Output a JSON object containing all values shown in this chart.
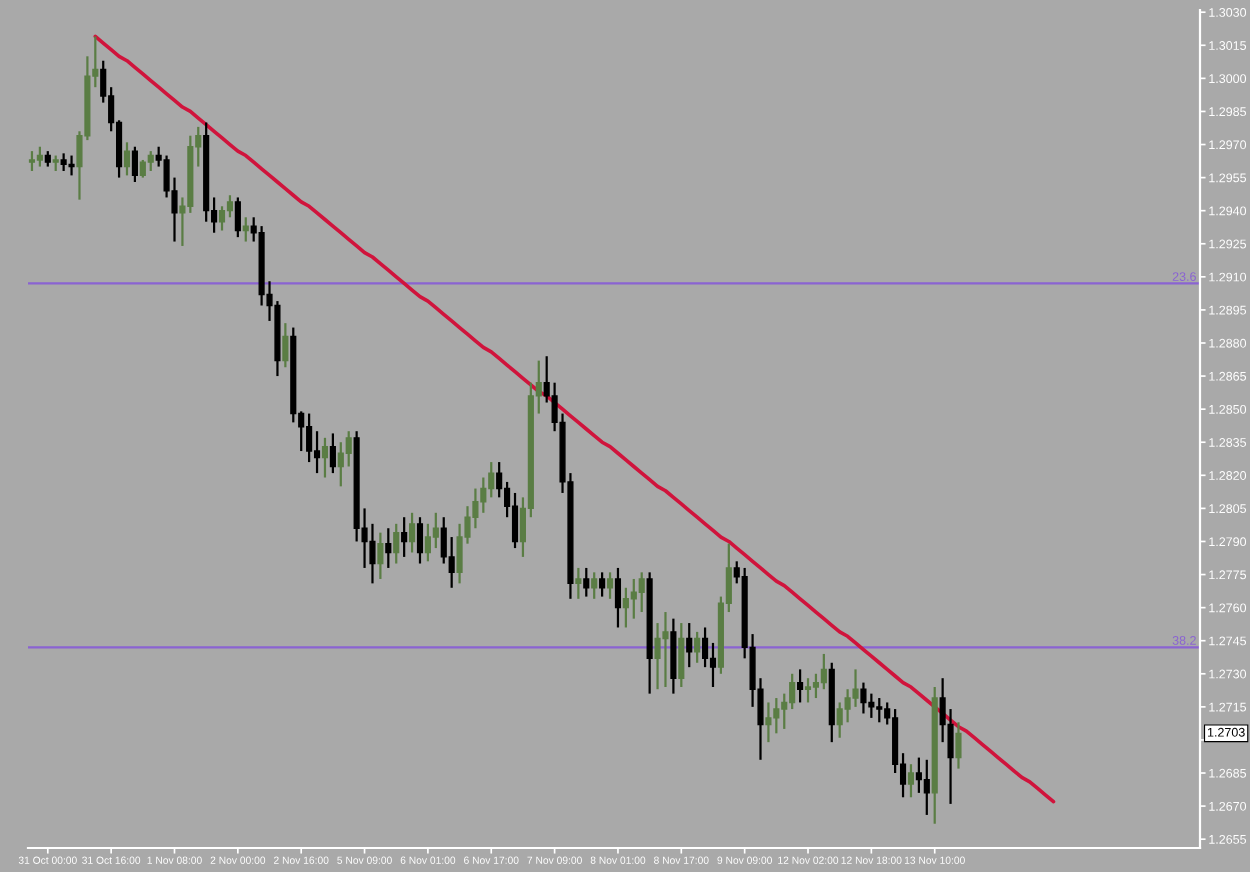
{
  "chart_data": {
    "type": "candlestick",
    "categories": [
      null,
      null,
      "31 Oct 00:00",
      null,
      null,
      null,
      null,
      null,
      null,
      null,
      "31 Oct 16:00",
      null,
      null,
      null,
      null,
      null,
      null,
      null,
      "1 Nov 08:00",
      null,
      null,
      null,
      null,
      null,
      null,
      null,
      "2 Nov 00:00",
      null,
      null,
      null,
      null,
      null,
      null,
      null,
      "2 Nov 16:00",
      null,
      null,
      null,
      null,
      null,
      null,
      null,
      "5 Nov 09:00",
      null,
      null,
      null,
      null,
      null,
      null,
      null,
      "6 Nov 01:00",
      null,
      null,
      null,
      null,
      null,
      null,
      null,
      "6 Nov 17:00",
      null,
      null,
      null,
      null,
      null,
      null,
      null,
      "7 Nov 09:00",
      null,
      null,
      null,
      null,
      null,
      null,
      null,
      "8 Nov 01:00",
      null,
      null,
      null,
      null,
      null,
      null,
      null,
      "8 Nov 17:00",
      null,
      null,
      null,
      null,
      null,
      null,
      null,
      "9 Nov 09:00",
      null,
      null,
      null,
      null,
      null,
      null,
      null,
      "12 Nov 02:00",
      null,
      null,
      null,
      null,
      null,
      null,
      null,
      "12 Nov 18:00",
      null,
      null,
      null,
      null,
      null,
      null,
      null,
      "13 Nov 10:00",
      null,
      null,
      null,
      null,
      null,
      null,
      null,
      null,
      null,
      null,
      null,
      null,
      null,
      null,
      null,
      null,
      null,
      null,
      null,
      null,
      null,
      null,
      null,
      null,
      null,
      null,
      null,
      null,
      null,
      null,
      null,
      null,
      null
    ],
    "ohlc": [
      [
        1.2962,
        1.2967,
        1.2958,
        1.2963
      ],
      [
        1.2963,
        1.2969,
        1.296,
        1.2965
      ],
      [
        1.2965,
        1.2967,
        1.296,
        1.2962
      ],
      [
        1.2962,
        1.2965,
        1.2958,
        1.2963
      ],
      [
        1.2963,
        1.2966,
        1.2958,
        1.2961
      ],
      [
        1.2961,
        1.2965,
        1.2956,
        1.296
      ],
      [
        1.296,
        1.2976,
        1.2945,
        1.2974
      ],
      [
        1.2974,
        1.301,
        1.2972,
        1.3001
      ],
      [
        1.3001,
        1.3019,
        1.2996,
        1.3004
      ],
      [
        1.3004,
        1.3008,
        1.2989,
        1.2992
      ],
      [
        1.2992,
        1.2996,
        1.2976,
        1.298
      ],
      [
        1.298,
        1.2981,
        1.2955,
        1.296
      ],
      [
        1.296,
        1.2971,
        1.2956,
        1.2967
      ],
      [
        1.2967,
        1.2969,
        1.2953,
        1.2956
      ],
      [
        1.2956,
        1.2963,
        1.2955,
        1.2962
      ],
      [
        1.2962,
        1.2967,
        1.2958,
        1.2965
      ],
      [
        1.2965,
        1.2969,
        1.296,
        1.2963
      ],
      [
        1.2963,
        1.2965,
        1.2946,
        1.2949
      ],
      [
        1.2949,
        1.2955,
        1.2926,
        1.2939
      ],
      [
        1.2939,
        1.2946,
        1.2924,
        1.2942
      ],
      [
        1.2942,
        1.2974,
        1.2939,
        1.2969
      ],
      [
        1.2969,
        1.2978,
        1.296,
        1.2974
      ],
      [
        1.2974,
        1.298,
        1.2935,
        1.294
      ],
      [
        1.294,
        1.2946,
        1.293,
        1.2935
      ],
      [
        1.2935,
        1.2942,
        1.2931,
        1.294
      ],
      [
        1.294,
        1.2947,
        1.2937,
        1.2944
      ],
      [
        1.2944,
        1.2946,
        1.2928,
        1.2931
      ],
      [
        1.2931,
        1.2937,
        1.2926,
        1.2933
      ],
      [
        1.2933,
        1.2937,
        1.2926,
        1.293
      ],
      [
        1.293,
        1.2933,
        1.2897,
        1.2902
      ],
      [
        1.2902,
        1.2908,
        1.289,
        1.2897
      ],
      [
        1.2897,
        1.2899,
        1.2865,
        1.2872
      ],
      [
        1.2872,
        1.2889,
        1.2869,
        1.2883
      ],
      [
        1.2883,
        1.2887,
        1.2844,
        1.2848
      ],
      [
        1.2848,
        1.2849,
        1.2831,
        1.2842
      ],
      [
        1.2842,
        1.2848,
        1.2826,
        1.2831
      ],
      [
        1.2831,
        1.284,
        1.2821,
        1.2828
      ],
      [
        1.2828,
        1.2837,
        1.2819,
        1.2833
      ],
      [
        1.2833,
        1.2839,
        1.2821,
        1.2824
      ],
      [
        1.2824,
        1.2835,
        1.2815,
        1.283
      ],
      [
        1.283,
        1.284,
        1.2824,
        1.2837
      ],
      [
        1.2837,
        1.284,
        1.279,
        1.2796
      ],
      [
        1.2796,
        1.2805,
        1.2778,
        1.279
      ],
      [
        1.279,
        1.2798,
        1.2771,
        1.278
      ],
      [
        1.278,
        1.2794,
        1.2773,
        1.2789
      ],
      [
        1.2789,
        1.2796,
        1.2778,
        1.2785
      ],
      [
        1.2785,
        1.2798,
        1.278,
        1.2794
      ],
      [
        1.2794,
        1.2801,
        1.2783,
        1.279
      ],
      [
        1.279,
        1.2803,
        1.2785,
        1.2798
      ],
      [
        1.2798,
        1.2801,
        1.278,
        1.2785
      ],
      [
        1.2785,
        1.2798,
        1.2781,
        1.2792
      ],
      [
        1.2792,
        1.2803,
        1.2787,
        1.2796
      ],
      [
        1.2796,
        1.2801,
        1.278,
        1.2783
      ],
      [
        1.2783,
        1.2792,
        1.2769,
        1.2776
      ],
      [
        1.2776,
        1.2798,
        1.2771,
        1.2792
      ],
      [
        1.2792,
        1.2806,
        1.2789,
        1.2801
      ],
      [
        1.2801,
        1.2814,
        1.2796,
        1.2808
      ],
      [
        1.2808,
        1.2819,
        1.2803,
        1.2814
      ],
      [
        1.2814,
        1.2826,
        1.281,
        1.2821
      ],
      [
        1.2821,
        1.2826,
        1.281,
        1.2814
      ],
      [
        1.2814,
        1.2817,
        1.2801,
        1.2806
      ],
      [
        1.2806,
        1.2812,
        1.2787,
        1.279
      ],
      [
        1.279,
        1.281,
        1.2783,
        1.2805
      ],
      [
        1.2805,
        1.2862,
        1.2801,
        1.2856
      ],
      [
        1.2856,
        1.2872,
        1.2848,
        1.2862
      ],
      [
        1.2862,
        1.2874,
        1.2853,
        1.2856
      ],
      [
        1.2856,
        1.2862,
        1.284,
        1.2844
      ],
      [
        1.2844,
        1.2848,
        1.2812,
        1.2817
      ],
      [
        1.2817,
        1.2821,
        1.2764,
        1.2771
      ],
      [
        1.2771,
        1.2778,
        1.2764,
        1.2773
      ],
      [
        1.2773,
        1.2778,
        1.2765,
        1.2769
      ],
      [
        1.2769,
        1.2776,
        1.2764,
        1.2773
      ],
      [
        1.2773,
        1.2776,
        1.2765,
        1.2769
      ],
      [
        1.2769,
        1.2776,
        1.2764,
        1.2773
      ],
      [
        1.2773,
        1.2778,
        1.2751,
        1.276
      ],
      [
        1.276,
        1.2769,
        1.2751,
        1.2764
      ],
      [
        1.2764,
        1.2773,
        1.2755,
        1.2767
      ],
      [
        1.2767,
        1.2776,
        1.2758,
        1.2773
      ],
      [
        1.2773,
        1.2776,
        1.2721,
        1.2737
      ],
      [
        1.2737,
        1.2753,
        1.2723,
        1.2746
      ],
      [
        1.2746,
        1.2758,
        1.2724,
        1.2749
      ],
      [
        1.2749,
        1.2755,
        1.2721,
        1.2728
      ],
      [
        1.2728,
        1.2753,
        1.2724,
        1.2746
      ],
      [
        1.2746,
        1.2753,
        1.2733,
        1.274
      ],
      [
        1.274,
        1.2749,
        1.2735,
        1.2746
      ],
      [
        1.2746,
        1.2751,
        1.2733,
        1.2737
      ],
      [
        1.2737,
        1.2744,
        1.2724,
        1.2733
      ],
      [
        1.2733,
        1.2765,
        1.273,
        1.2762
      ],
      [
        1.2762,
        1.2789,
        1.2758,
        1.2778
      ],
      [
        1.2778,
        1.2781,
        1.2771,
        1.2774
      ],
      [
        1.2774,
        1.2778,
        1.2737,
        1.2742
      ],
      [
        1.2742,
        1.2748,
        1.2715,
        1.2723
      ],
      [
        1.2723,
        1.2728,
        1.2691,
        1.2707
      ],
      [
        1.2707,
        1.2717,
        1.2699,
        1.271
      ],
      [
        1.271,
        1.2719,
        1.2703,
        1.2714
      ],
      [
        1.2714,
        1.2721,
        1.2705,
        1.2717
      ],
      [
        1.2717,
        1.273,
        1.2714,
        1.2726
      ],
      [
        1.2726,
        1.2732,
        1.2717,
        1.2723
      ],
      [
        1.2723,
        1.2728,
        1.2717,
        1.2724
      ],
      [
        1.2724,
        1.273,
        1.2719,
        1.2726
      ],
      [
        1.2726,
        1.2739,
        1.2723,
        1.2732
      ],
      [
        1.2732,
        1.2735,
        1.2699,
        1.2707
      ],
      [
        1.2707,
        1.2717,
        1.2701,
        1.2714
      ],
      [
        1.2714,
        1.2723,
        1.2708,
        1.2719
      ],
      [
        1.2719,
        1.2732,
        1.2715,
        1.2723
      ],
      [
        1.2723,
        1.2726,
        1.2712,
        1.2717
      ],
      [
        1.2717,
        1.2721,
        1.271,
        1.2715
      ],
      [
        1.2715,
        1.2719,
        1.2708,
        1.2714
      ],
      [
        1.2714,
        1.2717,
        1.2707,
        1.271
      ],
      [
        1.271,
        1.2714,
        1.2685,
        1.2689
      ],
      [
        1.2689,
        1.2694,
        1.2674,
        1.268
      ],
      [
        1.268,
        1.2689,
        1.2674,
        1.2685
      ],
      [
        1.2685,
        1.2692,
        1.2676,
        1.2682
      ],
      [
        1.2682,
        1.2691,
        1.2666,
        1.2676
      ],
      [
        1.2676,
        1.2724,
        1.2662,
        1.2719
      ],
      [
        1.2719,
        1.2728,
        1.2699,
        1.2707
      ],
      [
        1.2707,
        1.2714,
        1.2671,
        1.2692
      ],
      [
        1.2692,
        1.2708,
        1.2687,
        1.2703
      ],
      null,
      null,
      null,
      null,
      null,
      null,
      null,
      null,
      null,
      null,
      null,
      null,
      null,
      null,
      null,
      null,
      null,
      null,
      null,
      null,
      null,
      null,
      null,
      null,
      null,
      null,
      null,
      null,
      null,
      null
    ],
    "colors": [
      "#5a7d44",
      "#5a7d44",
      "#000000",
      "#5a7d44",
      "#000000",
      "#000000",
      "#5a7d44",
      "#5a7d44",
      "#5a7d44",
      "#000000",
      "#000000",
      "#000000",
      "#5a7d44",
      "#000000",
      "#5a7d44",
      "#5a7d44",
      "#000000",
      "#000000",
      "#000000",
      "#5a7d44",
      "#5a7d44",
      "#5a7d44",
      "#000000",
      "#000000",
      "#5a7d44",
      "#5a7d44",
      "#000000",
      "#5a7d44",
      "#000000",
      "#000000",
      "#000000",
      "#000000",
      "#5a7d44",
      "#000000",
      "#000000",
      "#000000",
      "#000000",
      "#5a7d44",
      "#000000",
      "#5a7d44",
      "#5a7d44",
      "#000000",
      "#000000",
      "#000000",
      "#5a7d44",
      "#000000",
      "#5a7d44",
      "#000000",
      "#5a7d44",
      "#000000",
      "#5a7d44",
      "#5a7d44",
      "#000000",
      "#000000",
      "#5a7d44",
      "#5a7d44",
      "#5a7d44",
      "#5a7d44",
      "#5a7d44",
      "#000000",
      "#000000",
      "#000000",
      "#5a7d44",
      "#5a7d44",
      "#5a7d44",
      "#000000",
      "#000000",
      "#000000",
      "#000000",
      "#5a7d44",
      "#000000",
      "#5a7d44",
      "#000000",
      "#5a7d44",
      "#000000",
      "#5a7d44",
      "#5a7d44",
      "#5a7d44",
      "#000000",
      "#5a7d44",
      "#5a7d44",
      "#000000",
      "#5a7d44",
      "#000000",
      "#5a7d44",
      "#000000",
      "#000000",
      "#5a7d44",
      "#5a7d44",
      "#000000",
      "#000000",
      "#000000",
      "#000000",
      "#5a7d44",
      "#5a7d44",
      "#5a7d44",
      "#5a7d44",
      "#000000",
      "#5a7d44",
      "#5a7d44",
      "#5a7d44",
      "#000000",
      "#5a7d44",
      "#5a7d44",
      "#5a7d44",
      "#000000",
      "#000000",
      "#000000",
      "#000000",
      "#000000",
      "#000000",
      "#5a7d44",
      "#000000",
      "#000000",
      "#5a7d44",
      "#000000",
      "#000000",
      "#5a7d44",
      null,
      null,
      null,
      null,
      null,
      null,
      null,
      null,
      null,
      null,
      null,
      null,
      null,
      null,
      null,
      null,
      null,
      null,
      null,
      null,
      null,
      null,
      null,
      null,
      null,
      null,
      null,
      null,
      null,
      null
    ],
    "series": [
      {
        "type": "line",
        "color": "#d0143c",
        "values": [
          null,
          null,
          null,
          null,
          null,
          null,
          null,
          null,
          1.3019,
          1.3016,
          1.3013,
          1.301,
          1.3008,
          1.3005,
          1.3002,
          1.2999,
          1.2996,
          1.2993,
          1.299,
          1.2987,
          1.2985,
          1.2982,
          1.2979,
          1.2976,
          1.2973,
          1.297,
          1.2967,
          1.2965,
          1.2962,
          1.2959,
          1.2956,
          1.2953,
          1.295,
          1.2947,
          1.2944,
          1.2942,
          1.2939,
          1.2936,
          1.2933,
          1.293,
          1.2927,
          1.2924,
          1.2921,
          1.2919,
          1.2916,
          1.2913,
          1.291,
          1.2907,
          1.2904,
          1.2901,
          1.2899,
          1.2896,
          1.2893,
          1.289,
          1.2887,
          1.2884,
          1.2881,
          1.2878,
          1.2876,
          1.2873,
          1.287,
          1.2867,
          1.2864,
          1.2861,
          1.2858,
          1.2856,
          1.2853,
          1.285,
          1.2847,
          1.2844,
          1.2841,
          1.2838,
          1.2835,
          1.2833,
          1.283,
          1.2827,
          1.2824,
          1.2821,
          1.2818,
          1.2815,
          1.2813,
          1.281,
          1.2807,
          1.2804,
          1.2801,
          1.2798,
          1.2795,
          1.2792,
          1.279,
          1.2787,
          1.2784,
          1.2781,
          1.2778,
          1.2775,
          1.2772,
          1.277,
          1.2767,
          1.2764,
          1.2761,
          1.2758,
          1.2755,
          1.2752,
          1.2749,
          1.2747,
          1.2744,
          1.2741,
          1.2738,
          1.2735,
          1.2732,
          1.2729,
          1.2726,
          1.2724,
          1.2721,
          1.2718,
          1.2715,
          1.2712,
          1.2709,
          1.2706,
          1.2704,
          1.2701,
          1.2698,
          1.2695,
          1.2692,
          1.2689,
          1.2686,
          1.2683,
          1.2681,
          1.2678,
          1.2675,
          1.2672,
          null,
          null,
          null,
          null,
          null,
          null,
          null,
          null,
          null,
          null,
          null,
          null,
          null,
          null,
          null,
          null,
          null,
          null
        ]
      }
    ],
    "ylim": [
      1.2651,
      1.3031
    ],
    "yticks": [
      1.2655,
      {
        "value": 1.267,
        "label": "1.2670"
      },
      1.2685,
      {
        "value": 1.27,
        "label": null
      },
      1.2715,
      {
        "value": 1.273,
        "label": "1.2730"
      },
      1.2745,
      {
        "value": 1.276,
        "label": "1.2760"
      },
      1.2775,
      {
        "value": 1.279,
        "label": "1.2790"
      },
      1.2805,
      {
        "value": 1.282,
        "label": "1.2820"
      },
      1.2835,
      {
        "value": 1.285,
        "label": "1.2850"
      },
      1.2865,
      {
        "value": 1.288,
        "label": "1.2880"
      },
      1.2895,
      {
        "value": 1.291,
        "label": "1.2910"
      },
      1.2925,
      {
        "value": 1.294,
        "label": "1.2940"
      },
      1.2955,
      {
        "value": 1.297,
        "label": "1.2970"
      },
      1.2985,
      {
        "value": 1.3,
        "label": "1.3000"
      },
      1.3015,
      {
        "value": 1.303,
        "label": "1.3030"
      }
    ],
    "ref_lines": [
      {
        "axis": "y",
        "value": 1.2907,
        "color": "#8a63d2"
      },
      {
        "axis": "y",
        "value": 1.2742,
        "color": "#8a63d2"
      }
    ],
    "annotations": [
      {
        "text": "23.6",
        "y": 1.2907
      },
      {
        "text": "38.2",
        "y": 1.2742
      },
      {
        "text": "1.2703",
        "y": 1.2703
      }
    ]
  }
}
